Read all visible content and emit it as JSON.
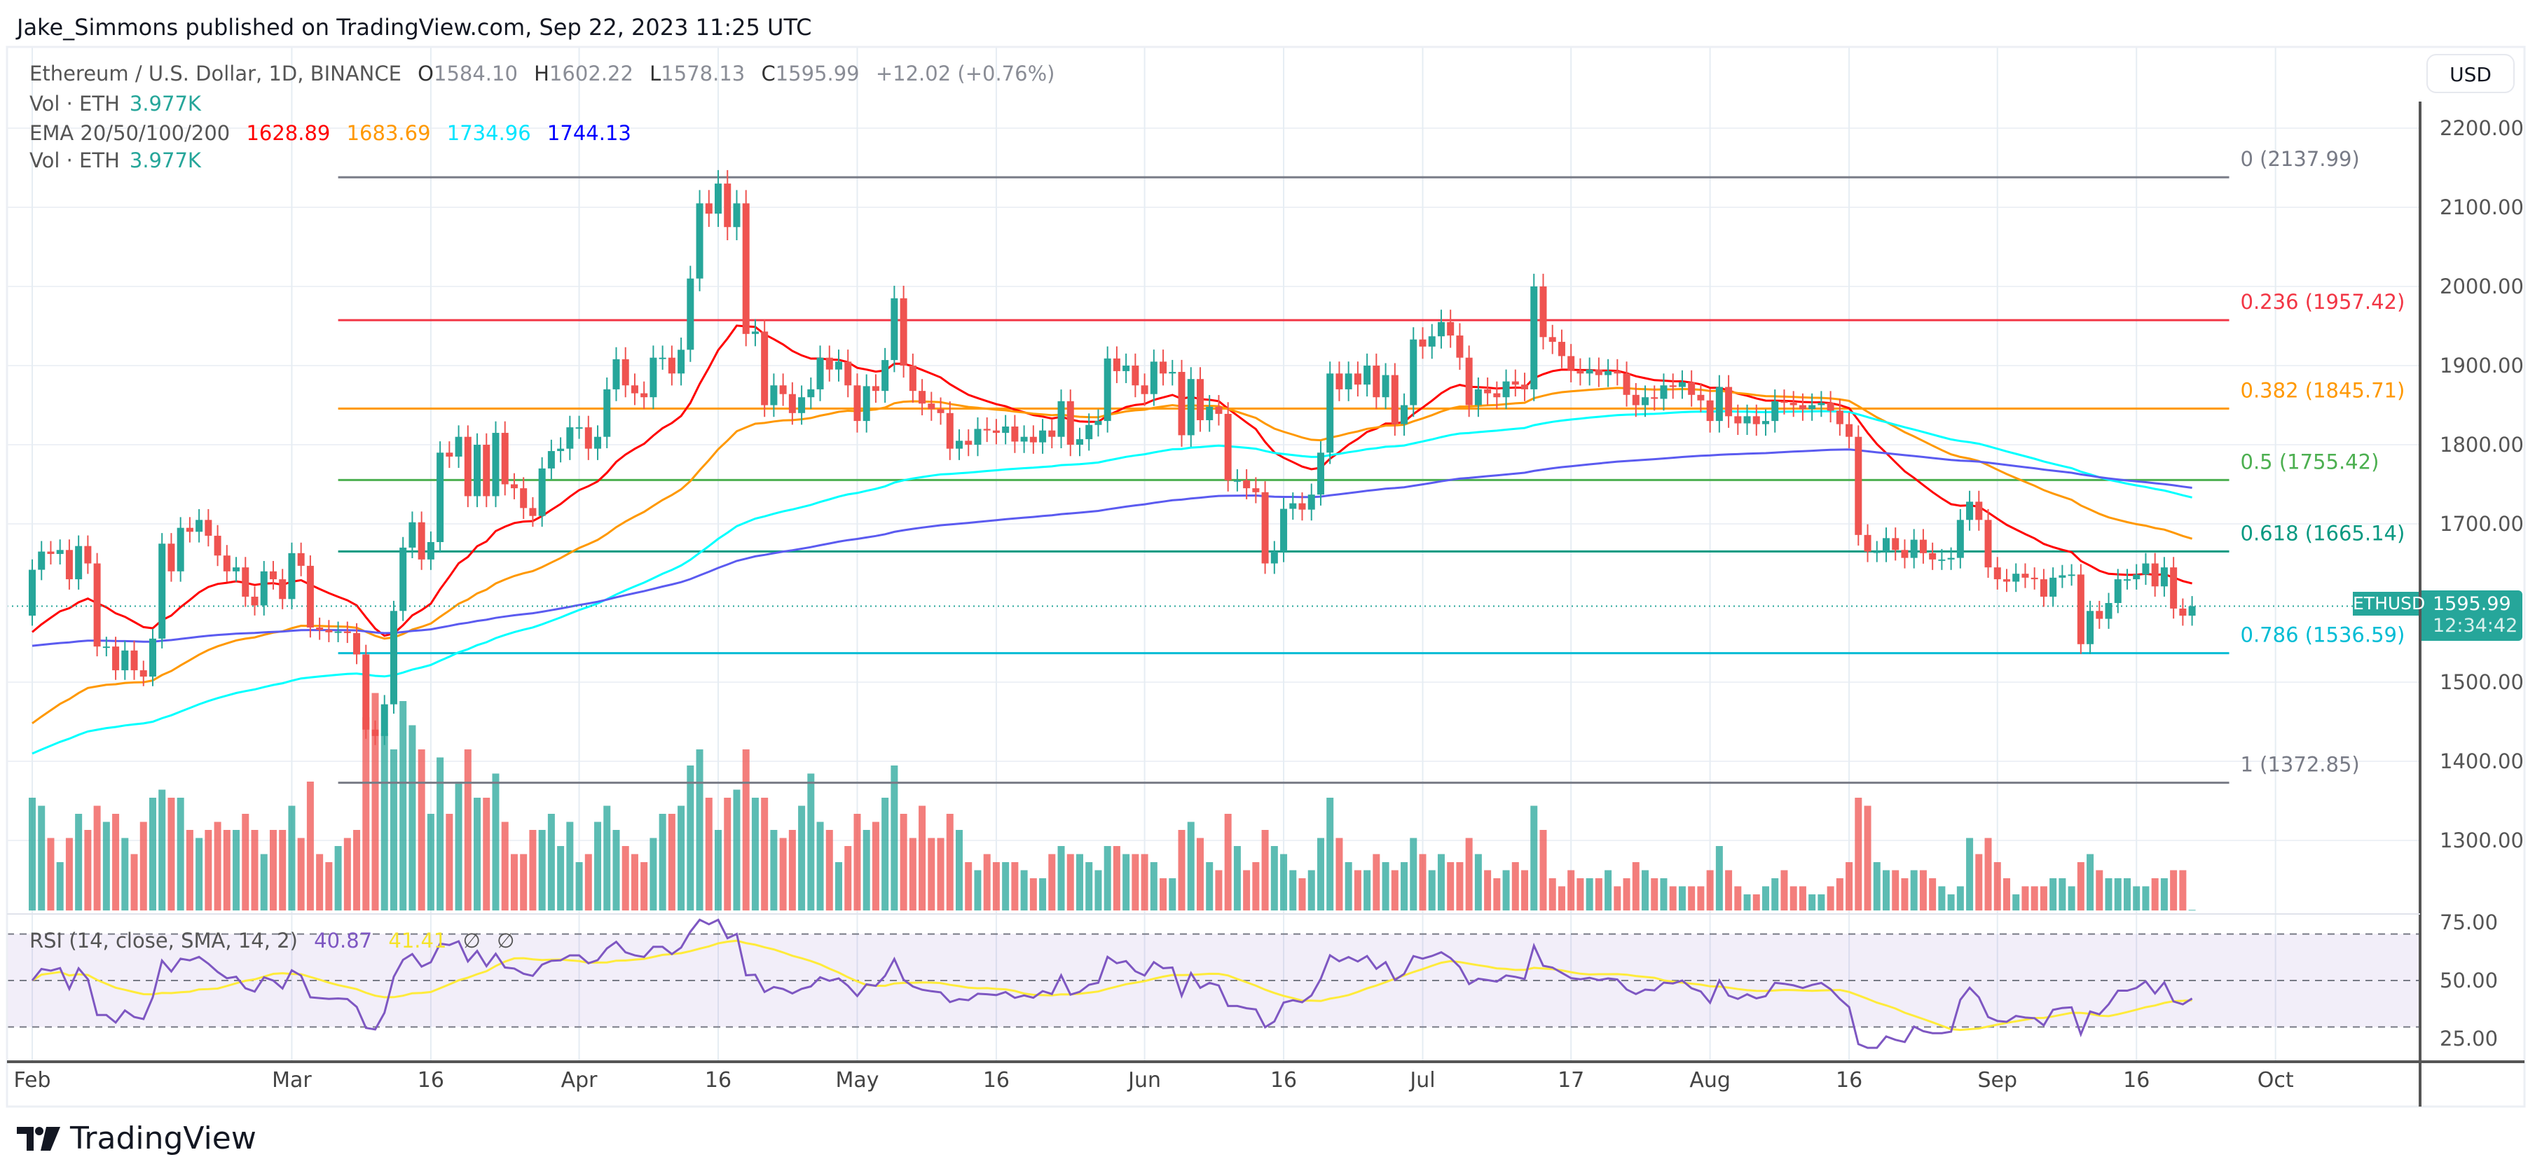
{
  "header": {
    "published": "Jake_Simmons published on TradingView.com, Sep 22, 2023 11:25 UTC"
  },
  "legend": {
    "symbol": "Ethereum / U.S. Dollar, 1D, BINANCE",
    "o_label": "O",
    "o": "1584.10",
    "h_label": "H",
    "h": "1602.22",
    "l_label": "L",
    "l": "1578.13",
    "c_label": "C",
    "c": "1595.99",
    "change": "+12.02 (+0.76%)",
    "vol_label": "Vol · ETH",
    "vol": "3.977K",
    "ema_label": "EMA 20/50/100/200",
    "ema20": "1628.89",
    "ema50": "1683.69",
    "ema100": "1734.96",
    "ema200": "1744.13",
    "vol2_label": "Vol · ETH",
    "vol2": "3.977K",
    "rsi_label": "RSI (14, close, SMA, 14, 2)",
    "rsi": "40.87",
    "rsi_sma": "41.41",
    "rsi_na1": "∅",
    "rsi_na2": "∅"
  },
  "price_axis": {
    "currency": "USD",
    "ticks": [
      "2200.00",
      "2100.00",
      "2000.00",
      "1900.00",
      "1800.00",
      "1700.00",
      "1500.00",
      "1400.00",
      "1300.00"
    ],
    "tick_values": [
      2200,
      2100,
      2000,
      1900,
      1800,
      1700,
      1500,
      1400,
      1300
    ],
    "last_price": "1595.99",
    "countdown": "12:34:42",
    "symbol_tag": "ETHUSD"
  },
  "rsi_axis": {
    "ticks": [
      "75.00",
      "50.00",
      "25.00"
    ],
    "tick_values": [
      75,
      50,
      25
    ]
  },
  "time_axis": [
    {
      "label": "Feb",
      "date": "2023-02-01"
    },
    {
      "label": "Mar",
      "date": "2023-03-01"
    },
    {
      "label": "16",
      "date": "2023-03-16"
    },
    {
      "label": "Apr",
      "date": "2023-04-01"
    },
    {
      "label": "16",
      "date": "2023-04-16"
    },
    {
      "label": "May",
      "date": "2023-05-01"
    },
    {
      "label": "16",
      "date": "2023-05-16"
    },
    {
      "label": "Jun",
      "date": "2023-06-01"
    },
    {
      "label": "16",
      "date": "2023-06-16"
    },
    {
      "label": "Jul",
      "date": "2023-07-01"
    },
    {
      "label": "17",
      "date": "2023-07-17"
    },
    {
      "label": "Aug",
      "date": "2023-08-01"
    },
    {
      "label": "16",
      "date": "2023-08-16"
    },
    {
      "label": "Sep",
      "date": "2023-09-01"
    },
    {
      "label": "16",
      "date": "2023-09-16"
    },
    {
      "label": "Oct",
      "date": "2023-10-01"
    }
  ],
  "fib": {
    "from": "2023-03-06",
    "to": "2023-09-26",
    "levels": [
      {
        "label": "0 (2137.99)",
        "value": 2137.99,
        "color": "#787b86"
      },
      {
        "label": "0.236 (1957.42)",
        "value": 1957.42,
        "color": "#f23645"
      },
      {
        "label": "0.382 (1845.71)",
        "value": 1845.71,
        "color": "#ff9800"
      },
      {
        "label": "0.5 (1755.42)",
        "value": 1755.42,
        "color": "#4caf50"
      },
      {
        "label": "0.618 (1665.14)",
        "value": 1665.14,
        "color": "#089981"
      },
      {
        "label": "0.786 (1536.59)",
        "value": 1536.59,
        "color": "#00bcd4"
      },
      {
        "label": "1 (1372.85)",
        "value": 1372.85,
        "color": "#787b86"
      }
    ]
  },
  "colors": {
    "up": "#26a69a",
    "down": "#ef5350",
    "ema20": "#ff0000",
    "ema50": "#ff9800",
    "ema100": "#00ffff",
    "ema200": "#0000ff",
    "rsi": "#7e57c2",
    "rsi_sma": "#ffeb3b"
  },
  "logo": {
    "text": "TradingView"
  },
  "chart_data": {
    "type": "candlestick",
    "title": "Ethereum / U.S. Dollar, 1D, BINANCE",
    "x_start": "2023-02-01",
    "x_end": "2023-09-22",
    "ylim": [
      1250,
      2250
    ],
    "grid": true,
    "closes": [
      1642,
      1665,
      1662,
      1667,
      1630,
      1672,
      1650,
      1545,
      1545,
      1515,
      1540,
      1515,
      1507,
      1555,
      1675,
      1640,
      1695,
      1690,
      1705,
      1685,
      1660,
      1640,
      1645,
      1608,
      1597,
      1640,
      1630,
      1605,
      1663,
      1647,
      1569,
      1566,
      1563,
      1564,
      1562,
      1535,
      1440,
      1432,
      1472,
      1590,
      1670,
      1702,
      1655,
      1677,
      1790,
      1785,
      1810,
      1735,
      1800,
      1735,
      1815,
      1750,
      1745,
      1720,
      1710,
      1770,
      1792,
      1795,
      1822,
      1822,
      1795,
      1810,
      1870,
      1908,
      1875,
      1865,
      1860,
      1910,
      1910,
      1890,
      1920,
      2010,
      2105,
      2092,
      2130,
      2075,
      2105,
      1940,
      1943,
      1850,
      1875,
      1864,
      1840,
      1860,
      1870,
      1910,
      1895,
      1905,
      1875,
      1830,
      1874,
      1868,
      1907,
      1985,
      1900,
      1868,
      1852,
      1845,
      1840,
      1795,
      1805,
      1800,
      1820,
      1818,
      1815,
      1823,
      1804,
      1810,
      1803,
      1818,
      1810,
      1855,
      1800,
      1807,
      1825,
      1830,
      1909,
      1893,
      1900,
      1875,
      1864,
      1905,
      1890,
      1892,
      1812,
      1883,
      1831,
      1848,
      1839,
      1755,
      1755,
      1745,
      1740,
      1650,
      1665,
      1719,
      1726,
      1718,
      1737,
      1790,
      1890,
      1870,
      1890,
      1876,
      1900,
      1860,
      1888,
      1826,
      1850,
      1933,
      1924,
      1937,
      1955,
      1938,
      1910,
      1850,
      1870,
      1865,
      1860,
      1880,
      1876,
      1870,
      2000,
      1936,
      1930,
      1912,
      1894,
      1890,
      1895,
      1888,
      1893,
      1890,
      1863,
      1850,
      1860,
      1858,
      1875,
      1873,
      1879,
      1863,
      1856,
      1830,
      1873,
      1836,
      1827,
      1836,
      1826,
      1830,
      1855,
      1853,
      1850,
      1845,
      1850,
      1853,
      1843,
      1826,
      1810,
      1686,
      1665,
      1665,
      1682,
      1667,
      1657,
      1680,
      1663,
      1655,
      1655,
      1657,
      1705,
      1728,
      1705,
      1645,
      1630,
      1627,
      1637,
      1632,
      1630,
      1608,
      1632,
      1635,
      1636,
      1548,
      1590,
      1580,
      1600,
      1630,
      1630,
      1636,
      1650,
      1621,
      1645,
      1593,
      1584,
      1596
    ],
    "volume_k": [
      700,
      650,
      450,
      300,
      450,
      600,
      500,
      650,
      550,
      600,
      450,
      350,
      550,
      700,
      750,
      700,
      700,
      500,
      450,
      500,
      550,
      500,
      500,
      600,
      500,
      350,
      500,
      500,
      650,
      450,
      800,
      350,
      300,
      400,
      450,
      500,
      1200,
      1350,
      1100,
      1000,
      1300,
      1150,
      1000,
      600,
      950,
      600,
      800,
      1000,
      700,
      700,
      850,
      550,
      350,
      350,
      500,
      500,
      600,
      400,
      550,
      300,
      350,
      550,
      650,
      500,
      400,
      350,
      300,
      450,
      600,
      600,
      650,
      900,
      1000,
      700,
      500,
      700,
      750,
      1000,
      700,
      700,
      500,
      450,
      500,
      650,
      850,
      550,
      500,
      300,
      400,
      600,
      500,
      550,
      700,
      900,
      600,
      450,
      650,
      450,
      450,
      600,
      500,
      300,
      250,
      350,
      300,
      300,
      300,
      250,
      200,
      200,
      350,
      400,
      350,
      350,
      300,
      250,
      400,
      400,
      350,
      350,
      350,
      300,
      200,
      200,
      500,
      550,
      450,
      300,
      250,
      600,
      400,
      250,
      300,
      500,
      400,
      350,
      250,
      200,
      250,
      450,
      700,
      450,
      300,
      250,
      250,
      350,
      300,
      250,
      300,
      450,
      350,
      250,
      350,
      300,
      300,
      450,
      350,
      250,
      200,
      250,
      300,
      250,
      650,
      500,
      200,
      150,
      250,
      200,
      200,
      200,
      250,
      150,
      200,
      300,
      250,
      200,
      200,
      150,
      150,
      150,
      150,
      250,
      400,
      250,
      150,
      100,
      100,
      150,
      200,
      250,
      150,
      150,
      100,
      100,
      150,
      200,
      300,
      700,
      650,
      300,
      250,
      250,
      200,
      250,
      250,
      200,
      150,
      100,
      150,
      450,
      350,
      450,
      300,
      200,
      100,
      150,
      150,
      150,
      200,
      200,
      150,
      300,
      350,
      250,
      200,
      200,
      200,
      150,
      150,
      200,
      200,
      250,
      250,
      4
    ],
    "ema_last": {
      "20": 1628.89,
      "50": 1683.69,
      "100": 1734.96,
      "200": 1744.13
    },
    "rsi_last": 40.87,
    "rsi_sma_last": 41.41,
    "rsi_bands": [
      30,
      50,
      70
    ]
  }
}
